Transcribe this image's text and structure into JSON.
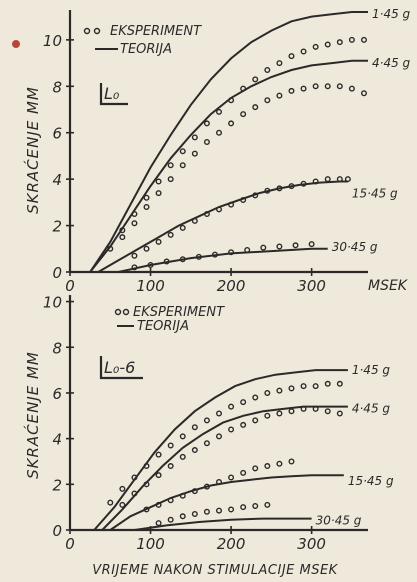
{
  "chart_data": [
    {
      "type": "scatter",
      "panel_label": "L₀",
      "ylabel": "SKRAĆENJE MM",
      "x_unit_label": "MSEK",
      "xlim": [
        0,
        370
      ],
      "ylim": [
        0,
        11.2
      ],
      "xticks": [
        0,
        100,
        200,
        300
      ],
      "yticks": [
        0,
        2,
        4,
        6,
        8,
        10
      ],
      "legend": {
        "points": "EKSPERIMENT",
        "line": "TEORIJA",
        "position": "top-left"
      },
      "series": [
        {
          "name": "1·45 g",
          "theory": {
            "x": [
              25,
              50,
              75,
              100,
              125,
              150,
              175,
              200,
              225,
              250,
              275,
              300,
              325,
              350,
              370
            ],
            "y": [
              0,
              1.3,
              2.9,
              4.5,
              5.9,
              7.2,
              8.3,
              9.2,
              9.9,
              10.4,
              10.8,
              11.0,
              11.1,
              11.2,
              11.2
            ]
          },
          "experiment": {
            "x": [
              50,
              65,
              80,
              95,
              110,
              125,
              140,
              155,
              170,
              185,
              200,
              215,
              230,
              245,
              260,
              275,
              290,
              305,
              320,
              335,
              350,
              365
            ],
            "y": [
              1.0,
              1.8,
              2.5,
              3.2,
              3.9,
              4.6,
              5.2,
              5.8,
              6.4,
              6.9,
              7.4,
              7.9,
              8.3,
              8.7,
              9.0,
              9.3,
              9.5,
              9.7,
              9.8,
              9.9,
              10.0,
              10.0
            ]
          }
        },
        {
          "name": "4·45 g",
          "theory": {
            "x": [
              25,
              50,
              75,
              100,
              125,
              150,
              175,
              200,
              225,
              250,
              275,
              300,
              325,
              350,
              370
            ],
            "y": [
              0,
              1.1,
              2.4,
              3.7,
              4.9,
              5.9,
              6.8,
              7.5,
              8.0,
              8.4,
              8.7,
              8.9,
              9.0,
              9.1,
              9.1
            ]
          },
          "experiment": {
            "x": [
              65,
              80,
              95,
              110,
              125,
              140,
              155,
              170,
              185,
              200,
              215,
              230,
              245,
              260,
              275,
              290,
              305,
              320,
              335,
              350,
              365
            ],
            "y": [
              1.5,
              2.1,
              2.8,
              3.4,
              4.0,
              4.6,
              5.1,
              5.6,
              6.0,
              6.4,
              6.8,
              7.1,
              7.4,
              7.6,
              7.8,
              7.9,
              8.0,
              8.0,
              8.0,
              7.9,
              7.7
            ]
          }
        },
        {
          "name": "15·45 g",
          "theory": {
            "x": [
              35,
              60,
              85,
              110,
              135,
              160,
              185,
              210,
              235,
              260,
              285,
              310,
              335,
              345
            ],
            "y": [
              0,
              0.5,
              1.0,
              1.5,
              2.0,
              2.4,
              2.8,
              3.1,
              3.4,
              3.6,
              3.75,
              3.85,
              3.9,
              3.9
            ]
          },
          "experiment": {
            "x": [
              80,
              95,
              110,
              125,
              140,
              155,
              170,
              185,
              200,
              215,
              230,
              245,
              260,
              275,
              290,
              305,
              320,
              335,
              345
            ],
            "y": [
              0.7,
              1.0,
              1.3,
              1.6,
              1.9,
              2.2,
              2.5,
              2.7,
              2.9,
              3.1,
              3.3,
              3.5,
              3.6,
              3.7,
              3.8,
              3.9,
              4.0,
              4.0,
              4.0
            ]
          }
        },
        {
          "name": "30·45 g",
          "theory": {
            "x": [
              60,
              100,
              150,
              200,
              250,
              300,
              320
            ],
            "y": [
              0,
              0.3,
              0.6,
              0.8,
              0.9,
              1.0,
              1.0
            ]
          },
          "experiment": {
            "x": [
              80,
              100,
              120,
              140,
              160,
              180,
              200,
              220,
              240,
              260,
              280,
              300
            ],
            "y": [
              0.2,
              0.3,
              0.45,
              0.55,
              0.65,
              0.75,
              0.85,
              0.95,
              1.05,
              1.1,
              1.15,
              1.2
            ]
          }
        }
      ]
    },
    {
      "type": "scatter",
      "panel_label": "L₀-6",
      "ylabel": "SKRAĆENJE MM",
      "xlabel": "VRIJEME NAKON STIMULACIJE MSEK",
      "xlim": [
        0,
        370
      ],
      "ylim": [
        0,
        10.2
      ],
      "xticks": [
        0,
        100,
        200,
        300
      ],
      "yticks": [
        0,
        2,
        4,
        6,
        8,
        10
      ],
      "legend": {
        "points": "EKSPERIMENT",
        "line": "TEORIJA",
        "position": "top-left"
      },
      "series": [
        {
          "name": "1·45 g",
          "theory": {
            "x": [
              30,
              55,
              80,
              105,
              130,
              155,
              180,
              205,
              230,
              255,
              280,
              305,
              330,
              345
            ],
            "y": [
              0,
              1.0,
              2.2,
              3.4,
              4.4,
              5.2,
              5.8,
              6.3,
              6.6,
              6.8,
              6.9,
              7.0,
              7.0,
              7.0
            ]
          },
          "experiment": {
            "x": [
              50,
              65,
              80,
              95,
              110,
              125,
              140,
              155,
              170,
              185,
              200,
              215,
              230,
              245,
              260,
              275,
              290,
              305,
              320,
              335
            ],
            "y": [
              1.2,
              1.8,
              2.3,
              2.8,
              3.3,
              3.7,
              4.1,
              4.5,
              4.8,
              5.1,
              5.4,
              5.6,
              5.8,
              6.0,
              6.1,
              6.2,
              6.3,
              6.3,
              6.4,
              6.4
            ]
          }
        },
        {
          "name": "4·45 g",
          "theory": {
            "x": [
              40,
              65,
              90,
              115,
              140,
              165,
              190,
              215,
              240,
              265,
              290,
              315,
              340,
              345
            ],
            "y": [
              0,
              0.9,
              1.9,
              2.8,
              3.6,
              4.2,
              4.7,
              5.0,
              5.2,
              5.3,
              5.4,
              5.4,
              5.4,
              5.4
            ]
          },
          "experiment": {
            "x": [
              65,
              80,
              95,
              110,
              125,
              140,
              155,
              170,
              185,
              200,
              215,
              230,
              245,
              260,
              275,
              290,
              305,
              320,
              335
            ],
            "y": [
              1.1,
              1.6,
              2.0,
              2.4,
              2.8,
              3.2,
              3.5,
              3.8,
              4.1,
              4.4,
              4.6,
              4.8,
              5.0,
              5.1,
              5.2,
              5.3,
              5.3,
              5.2,
              5.1
            ]
          }
        },
        {
          "name": "15·45 g",
          "theory": {
            "x": [
              50,
              75,
              100,
              125,
              150,
              175,
              200,
              225,
              250,
              275,
              300,
              325,
              340
            ],
            "y": [
              0,
              0.6,
              1.0,
              1.4,
              1.7,
              1.95,
              2.1,
              2.2,
              2.3,
              2.35,
              2.4,
              2.4,
              2.4
            ]
          },
          "experiment": {
            "x": [
              95,
              110,
              125,
              140,
              155,
              170,
              185,
              200,
              215,
              230,
              245,
              260,
              275
            ],
            "y": [
              0.9,
              1.1,
              1.3,
              1.5,
              1.7,
              1.9,
              2.1,
              2.3,
              2.5,
              2.7,
              2.8,
              2.9,
              3.0
            ]
          }
        },
        {
          "name": "30·45 g",
          "theory": {
            "x": [
              80,
              120,
              160,
              200,
              240,
              280,
              300
            ],
            "y": [
              0,
              0.2,
              0.35,
              0.45,
              0.5,
              0.5,
              0.5
            ]
          },
          "experiment": {
            "x": [
              110,
              125,
              140,
              155,
              170,
              185,
              200,
              215,
              230,
              245
            ],
            "y": [
              0.3,
              0.45,
              0.6,
              0.7,
              0.8,
              0.85,
              0.9,
              1.0,
              1.05,
              1.1
            ]
          }
        }
      ]
    }
  ]
}
